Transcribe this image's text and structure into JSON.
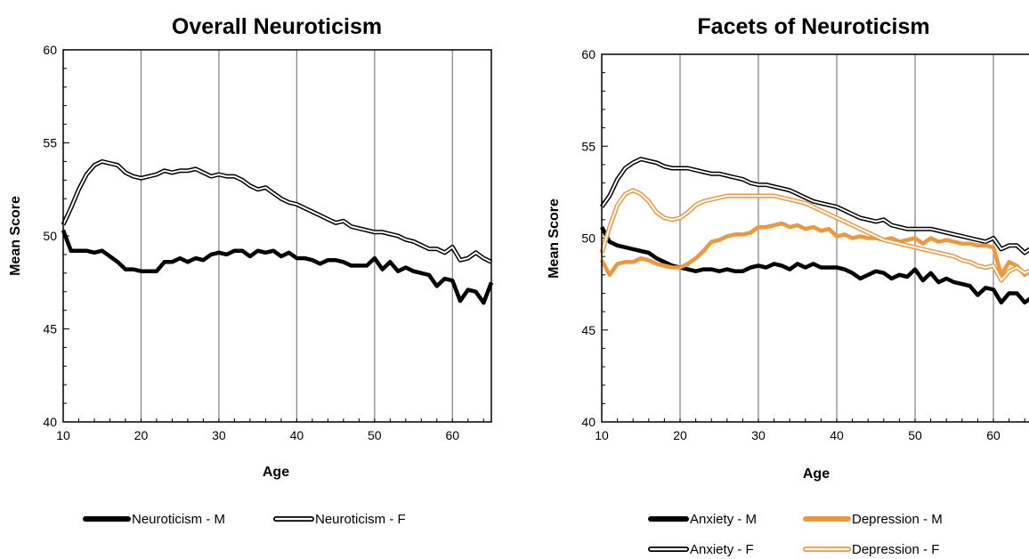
{
  "chart_data": [
    {
      "type": "line",
      "title": "Overall Neuroticism",
      "xlabel": "Age",
      "ylabel": "Mean Score",
      "xlim": [
        10,
        65
      ],
      "ylim": [
        40,
        60
      ],
      "xticks": [
        10,
        20,
        30,
        40,
        50,
        60
      ],
      "yticks": [
        40,
        45,
        50,
        55,
        60
      ],
      "grid": "vertical",
      "legend_position": "bottom",
      "series": [
        {
          "name": "Neuroticism - M",
          "color": "#000000",
          "style": "thick-solid",
          "x": [
            10,
            11,
            12,
            13,
            14,
            15,
            16,
            17,
            18,
            19,
            20,
            21,
            22,
            23,
            24,
            25,
            26,
            27,
            28,
            29,
            30,
            31,
            32,
            33,
            34,
            35,
            36,
            37,
            38,
            39,
            40,
            41,
            42,
            43,
            44,
            45,
            46,
            47,
            48,
            49,
            50,
            51,
            52,
            53,
            54,
            55,
            56,
            57,
            58,
            59,
            60,
            61,
            62,
            63,
            64,
            65
          ],
          "y": [
            50.3,
            49.2,
            49.2,
            49.2,
            49.1,
            49.2,
            48.9,
            48.6,
            48.2,
            48.2,
            48.1,
            48.1,
            48.1,
            48.6,
            48.6,
            48.8,
            48.6,
            48.8,
            48.7,
            49.0,
            49.1,
            49.0,
            49.2,
            49.2,
            48.9,
            49.2,
            49.1,
            49.2,
            48.9,
            49.1,
            48.8,
            48.8,
            48.7,
            48.5,
            48.7,
            48.7,
            48.6,
            48.4,
            48.4,
            48.4,
            48.8,
            48.2,
            48.6,
            48.1,
            48.3,
            48.1,
            48.0,
            47.9,
            47.3,
            47.7,
            47.6,
            46.5,
            47.1,
            47.0,
            46.4,
            47.5
          ]
        },
        {
          "name": "Neuroticism - F",
          "color": "#000000",
          "style": "double-outline",
          "x": [
            10,
            11,
            12,
            13,
            14,
            15,
            16,
            17,
            18,
            19,
            20,
            21,
            22,
            23,
            24,
            25,
            26,
            27,
            28,
            29,
            30,
            31,
            32,
            33,
            34,
            35,
            36,
            37,
            38,
            39,
            40,
            41,
            42,
            43,
            44,
            45,
            46,
            47,
            48,
            49,
            50,
            51,
            52,
            53,
            54,
            55,
            56,
            57,
            58,
            59,
            60,
            61,
            62,
            63,
            64,
            65
          ],
          "y": [
            50.6,
            51.5,
            52.5,
            53.3,
            53.8,
            54.0,
            53.9,
            53.8,
            53.4,
            53.2,
            53.1,
            53.2,
            53.3,
            53.5,
            53.4,
            53.5,
            53.5,
            53.6,
            53.4,
            53.2,
            53.3,
            53.2,
            53.2,
            53.0,
            52.7,
            52.5,
            52.6,
            52.3,
            52.0,
            51.8,
            51.7,
            51.5,
            51.3,
            51.1,
            50.9,
            50.7,
            50.8,
            50.5,
            50.4,
            50.3,
            50.2,
            50.2,
            50.1,
            50.0,
            49.8,
            49.7,
            49.5,
            49.3,
            49.3,
            49.1,
            49.4,
            48.7,
            48.8,
            49.1,
            48.8,
            48.6
          ]
        }
      ]
    },
    {
      "type": "line",
      "title": "Facets of Neuroticism",
      "xlabel": "Age",
      "ylabel": "Mean Score",
      "xlim": [
        10,
        65
      ],
      "ylim": [
        40,
        60
      ],
      "xticks": [
        10,
        20,
        30,
        40,
        50,
        60
      ],
      "yticks": [
        40,
        45,
        50,
        55,
        60
      ],
      "grid": "vertical",
      "legend_position": "bottom",
      "series": [
        {
          "name": "Anxiety - M",
          "color": "#000000",
          "style": "thick-solid",
          "x": [
            10,
            11,
            12,
            13,
            14,
            15,
            16,
            17,
            18,
            19,
            20,
            21,
            22,
            23,
            24,
            25,
            26,
            27,
            28,
            29,
            30,
            31,
            32,
            33,
            34,
            35,
            36,
            37,
            38,
            39,
            40,
            41,
            42,
            43,
            44,
            45,
            46,
            47,
            48,
            49,
            50,
            51,
            52,
            53,
            54,
            55,
            56,
            57,
            58,
            59,
            60,
            61,
            62,
            63,
            64,
            65
          ],
          "y": [
            50.6,
            49.8,
            49.6,
            49.5,
            49.4,
            49.3,
            49.2,
            48.9,
            48.7,
            48.5,
            48.4,
            48.3,
            48.2,
            48.3,
            48.3,
            48.2,
            48.3,
            48.2,
            48.2,
            48.4,
            48.5,
            48.4,
            48.6,
            48.5,
            48.3,
            48.6,
            48.4,
            48.6,
            48.4,
            48.4,
            48.4,
            48.3,
            48.1,
            47.8,
            48.0,
            48.2,
            48.1,
            47.8,
            48.0,
            47.9,
            48.3,
            47.7,
            48.1,
            47.6,
            47.8,
            47.6,
            47.5,
            47.4,
            46.9,
            47.3,
            47.2,
            46.5,
            47.0,
            47.0,
            46.5,
            46.8
          ]
        },
        {
          "name": "Anxiety - F",
          "color": "#000000",
          "style": "double-outline",
          "x": [
            10,
            11,
            12,
            13,
            14,
            15,
            16,
            17,
            18,
            19,
            20,
            21,
            22,
            23,
            24,
            25,
            26,
            27,
            28,
            29,
            30,
            31,
            32,
            33,
            34,
            35,
            36,
            37,
            38,
            39,
            40,
            41,
            42,
            43,
            44,
            45,
            46,
            47,
            48,
            49,
            50,
            51,
            52,
            53,
            54,
            55,
            56,
            57,
            58,
            59,
            60,
            61,
            62,
            63,
            64,
            65
          ],
          "y": [
            51.7,
            52.3,
            53.2,
            53.8,
            54.1,
            54.3,
            54.2,
            54.1,
            53.9,
            53.8,
            53.8,
            53.8,
            53.7,
            53.6,
            53.5,
            53.5,
            53.4,
            53.3,
            53.2,
            53.0,
            52.9,
            52.9,
            52.8,
            52.7,
            52.6,
            52.4,
            52.2,
            52.0,
            51.9,
            51.8,
            51.7,
            51.5,
            51.3,
            51.1,
            51.0,
            50.9,
            51.0,
            50.7,
            50.6,
            50.5,
            50.5,
            50.5,
            50.5,
            50.4,
            50.3,
            50.2,
            50.1,
            50.0,
            49.9,
            49.8,
            50.0,
            49.4,
            49.6,
            49.6,
            49.2,
            49.5
          ]
        },
        {
          "name": "Depression - M",
          "color": "#f0973e",
          "style": "thick-solid",
          "x": [
            10,
            11,
            12,
            13,
            14,
            15,
            16,
            17,
            18,
            19,
            20,
            21,
            22,
            23,
            24,
            25,
            26,
            27,
            28,
            29,
            30,
            31,
            32,
            33,
            34,
            35,
            36,
            37,
            38,
            39,
            40,
            41,
            42,
            43,
            44,
            45,
            46,
            47,
            48,
            49,
            50,
            51,
            52,
            53,
            54,
            55,
            56,
            57,
            58,
            59,
            60,
            61,
            62,
            63,
            64,
            65
          ],
          "y": [
            48.8,
            48.0,
            48.6,
            48.7,
            48.7,
            48.9,
            48.8,
            48.6,
            48.5,
            48.4,
            48.4,
            48.6,
            48.9,
            49.3,
            49.8,
            49.9,
            50.1,
            50.2,
            50.2,
            50.3,
            50.6,
            50.6,
            50.7,
            50.8,
            50.6,
            50.7,
            50.5,
            50.6,
            50.4,
            50.5,
            50.1,
            50.2,
            50.0,
            50.1,
            50.0,
            50.0,
            49.9,
            50.0,
            49.8,
            49.9,
            50.0,
            49.7,
            50.0,
            49.8,
            49.9,
            49.8,
            49.7,
            49.7,
            49.6,
            49.6,
            49.5,
            48.0,
            48.7,
            48.5,
            48.0,
            48.3
          ]
        },
        {
          "name": "Depression - F",
          "color": "#f0973e",
          "style": "double-outline",
          "x": [
            10,
            11,
            12,
            13,
            14,
            15,
            16,
            17,
            18,
            19,
            20,
            21,
            22,
            23,
            24,
            25,
            26,
            27,
            28,
            29,
            30,
            31,
            32,
            33,
            34,
            35,
            36,
            37,
            38,
            39,
            40,
            41,
            42,
            43,
            44,
            45,
            46,
            47,
            48,
            49,
            50,
            51,
            52,
            53,
            54,
            55,
            56,
            57,
            58,
            59,
            60,
            61,
            62,
            63,
            64,
            65
          ],
          "y": [
            49.2,
            50.6,
            51.8,
            52.4,
            52.6,
            52.4,
            52.0,
            51.4,
            51.1,
            51.0,
            51.1,
            51.4,
            51.8,
            52.0,
            52.1,
            52.2,
            52.3,
            52.3,
            52.3,
            52.3,
            52.3,
            52.3,
            52.3,
            52.2,
            52.1,
            52.0,
            51.9,
            51.7,
            51.5,
            51.3,
            51.1,
            50.9,
            50.7,
            50.5,
            50.3,
            50.1,
            49.9,
            49.8,
            49.7,
            49.6,
            49.5,
            49.4,
            49.3,
            49.2,
            49.1,
            49.0,
            48.8,
            48.7,
            48.5,
            48.4,
            48.5,
            47.7,
            48.2,
            48.4,
            48.1,
            48.3
          ]
        }
      ]
    }
  ]
}
